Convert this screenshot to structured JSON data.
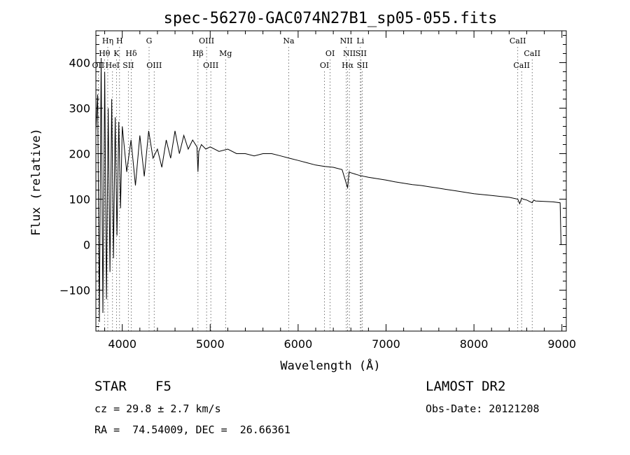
{
  "chart_data": {
    "type": "line",
    "title": "spec-56270-GAC074N27B1_sp05-055.fits",
    "xlabel": "Wavelength (Å)",
    "ylabel": "Flux (relative)",
    "xlim": [
      3700,
      9050
    ],
    "ylim": [
      -190,
      470
    ],
    "x_ticks": [
      4000,
      5000,
      6000,
      7000,
      8000,
      9000
    ],
    "y_ticks": [
      -100,
      0,
      100,
      200,
      300,
      400
    ],
    "x_tick_labels": [
      "4000",
      "5000",
      "6000",
      "7000",
      "8000",
      "9000"
    ],
    "y_tick_labels": [
      "−100",
      "0",
      "100",
      "200",
      "300",
      "400"
    ],
    "grid": false,
    "series": [
      {
        "x": [
          3700,
          3720,
          3740,
          3760,
          3780,
          3800,
          3820,
          3840,
          3860,
          3880,
          3900,
          3920,
          3940,
          3960,
          3980,
          4000,
          4050,
          4100,
          4150,
          4200,
          4250,
          4300,
          4350,
          4400,
          4450,
          4500,
          4550,
          4600,
          4650,
          4700,
          4750,
          4800,
          4850,
          4861,
          4870,
          4900,
          4950,
          5000,
          5100,
          5200,
          5300,
          5400,
          5500,
          5600,
          5700,
          5800,
          5900,
          6000,
          6100,
          6200,
          6300,
          6400,
          6500,
          6563,
          6580,
          6600,
          6700,
          6800,
          6900,
          7000,
          7100,
          7200,
          7300,
          7400,
          7500,
          7600,
          7700,
          7800,
          7900,
          8000,
          8100,
          8200,
          8300,
          8400,
          8498,
          8520,
          8542,
          8560,
          8600,
          8662,
          8680,
          8700,
          8800,
          8900,
          8980,
          8990,
          9000
        ],
        "y": [
          250,
          330,
          -170,
          410,
          -150,
          380,
          -120,
          300,
          -60,
          320,
          -30,
          280,
          20,
          270,
          80,
          260,
          160,
          230,
          130,
          240,
          150,
          250,
          190,
          210,
          170,
          230,
          190,
          250,
          200,
          240,
          210,
          230,
          215,
          160,
          205,
          220,
          210,
          215,
          205,
          210,
          200,
          200,
          195,
          200,
          200,
          195,
          190,
          185,
          180,
          175,
          172,
          170,
          165,
          125,
          160,
          158,
          152,
          148,
          145,
          142,
          138,
          135,
          132,
          130,
          127,
          124,
          121,
          118,
          115,
          112,
          110,
          108,
          106,
          104,
          100,
          90,
          102,
          100,
          98,
          92,
          98,
          96,
          95,
          94,
          92,
          0,
          0
        ]
      }
    ],
    "spectral_lines": [
      {
        "name": "Hη",
        "wl": 3835,
        "row": 0
      },
      {
        "name": "H",
        "wl": 3969,
        "row": 0
      },
      {
        "name": "Hθ",
        "wl": 3798,
        "row": 1
      },
      {
        "name": "K",
        "wl": 3934,
        "row": 1
      },
      {
        "name": "Hδ",
        "wl": 4102,
        "row": 1
      },
      {
        "name": "OII",
        "wl": 3727,
        "row": 2
      },
      {
        "name": "HeI",
        "wl": 3889,
        "row": 2
      },
      {
        "name": "SII",
        "wl": 4069,
        "row": 2
      },
      {
        "name": "G",
        "wl": 4305,
        "row": 0
      },
      {
        "name": "OIII",
        "wl": 4363,
        "row": 2
      },
      {
        "name": "OIII",
        "wl": 4959,
        "row": 0
      },
      {
        "name": "Hβ",
        "wl": 4861,
        "row": 1
      },
      {
        "name": "Mg",
        "wl": 5175,
        "row": 1
      },
      {
        "name": "OIII",
        "wl": 5007,
        "row": 2
      },
      {
        "name": "Na",
        "wl": 5893,
        "row": 0
      },
      {
        "name": "OI",
        "wl": 6364,
        "row": 1
      },
      {
        "name": "OI",
        "wl": 6300,
        "row": 2
      },
      {
        "name": "NII",
        "wl": 6548,
        "row": 0
      },
      {
        "name": "NII",
        "wl": 6583,
        "row": 1
      },
      {
        "name": "Hα",
        "wl": 6563,
        "row": 2
      },
      {
        "name": "Li",
        "wl": 6708,
        "row": 0
      },
      {
        "name": "SII",
        "wl": 6716,
        "row": 1
      },
      {
        "name": "SII",
        "wl": 6731,
        "row": 2
      },
      {
        "name": "CaII",
        "wl": 8498,
        "row": 0
      },
      {
        "name": "CaII",
        "wl": 8662,
        "row": 1
      },
      {
        "name": "CaII",
        "wl": 8542,
        "row": 2
      }
    ]
  },
  "info": {
    "obj_class": "STAR",
    "subclass": "F5",
    "survey": "LAMOST DR2",
    "cz": "cz = 29.8 ± 2.7 km/s",
    "obs_date": "Obs-Date: 20121208",
    "radec": "RA =  74.54009, DEC =  26.66361"
  }
}
